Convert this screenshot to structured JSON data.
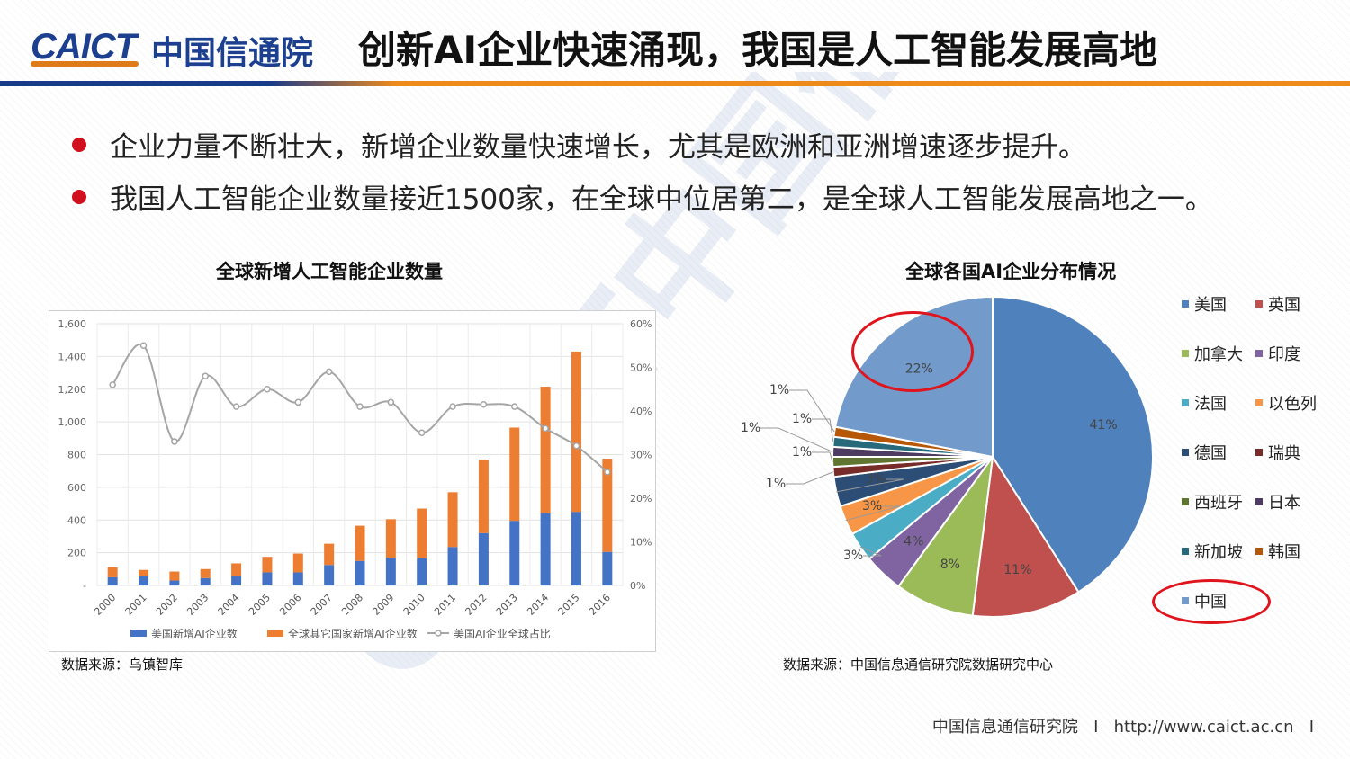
{
  "header": {
    "logo_text": "CAICT",
    "logo_cn": "中国信通院",
    "title": "创新AI企业快速涌现，我国是人工智能发展高地"
  },
  "bullets": [
    "企业力量不断壮大，新增企业数量快速增长，尤其是欧洲和亚洲增速逐步提升。",
    "我国人工智能企业数量接近1500家，在全球中位居第二，是全球人工智能发展高地之一。"
  ],
  "watermark": "CAICT中国信通院",
  "colors": {
    "accent_red": "#d0101e",
    "brand_blue": "#1c3f8f",
    "brand_orange": "#ee8a1c"
  },
  "chart_data": [
    {
      "type": "bar",
      "title": "全球新增人工智能企业数量",
      "categories": [
        "2000",
        "2001",
        "2002",
        "2003",
        "2004",
        "2005",
        "2006",
        "2007",
        "2008",
        "2009",
        "2010",
        "2011",
        "2012",
        "2013",
        "2014",
        "2015",
        "2016"
      ],
      "series": [
        {
          "name": "美国新增AI企业数",
          "kind": "stacked-bar",
          "color": "#4472c4",
          "values": [
            50,
            55,
            30,
            45,
            60,
            80,
            80,
            125,
            150,
            170,
            165,
            235,
            320,
            395,
            440,
            450,
            205
          ]
        },
        {
          "name": "全球其它国家新增AI企业数",
          "kind": "stacked-bar",
          "color": "#ed7d31",
          "values": [
            60,
            40,
            55,
            55,
            75,
            95,
            115,
            130,
            215,
            235,
            305,
            335,
            450,
            570,
            775,
            980,
            570
          ]
        },
        {
          "name": "美国AI企业全球占比",
          "kind": "line",
          "axis": "right",
          "color": "#a5a5a5",
          "values": [
            46,
            55,
            33,
            48,
            41,
            45,
            42,
            49,
            41,
            42,
            35,
            41,
            41.5,
            41,
            36,
            32,
            26
          ]
        }
      ],
      "ylim": [
        0,
        1600
      ],
      "y_ticks": [
        "-",
        "200",
        "400",
        "600",
        "800",
        "1,000",
        "1,200",
        "1,400",
        "1,600"
      ],
      "y2lim": [
        0,
        60
      ],
      "y2_ticks": [
        "0%",
        "10%",
        "20%",
        "30%",
        "40%",
        "50%",
        "60%"
      ],
      "grid": true,
      "legend": "bottom",
      "source": "数据来源：乌镇智库"
    },
    {
      "type": "pie",
      "title": "全球各国AI企业分布情况",
      "slices": [
        {
          "label": "美国",
          "value": 41,
          "text": "41%",
          "color": "#4f81bd"
        },
        {
          "label": "英国",
          "value": 11,
          "text": "11%",
          "color": "#c0504d"
        },
        {
          "label": "加拿大",
          "value": 8,
          "text": "8%",
          "color": "#9bbb59"
        },
        {
          "label": "印度",
          "value": 4,
          "text": "4%",
          "color": "#8064a2"
        },
        {
          "label": "法国",
          "value": 3,
          "text": "3%",
          "color": "#4bacc6"
        },
        {
          "label": "以色列",
          "value": 3,
          "text": "3%",
          "color": "#f79646"
        },
        {
          "label": "德国",
          "value": 3,
          "text": "3%",
          "color": "#2c4d75"
        },
        {
          "label": "瑞典",
          "value": 1,
          "text": "1%",
          "color": "#772c2a"
        },
        {
          "label": "西班牙",
          "value": 1,
          "text": "1%",
          "color": "#5f7530"
        },
        {
          "label": "日本",
          "value": 1,
          "text": "1%",
          "color": "#4d3b62"
        },
        {
          "label": "新加坡",
          "value": 1,
          "text": "1%",
          "color": "#276a7c"
        },
        {
          "label": "韩国",
          "value": 1,
          "text": "1%",
          "color": "#b65708"
        },
        {
          "label": "中国",
          "value": 22,
          "text": "22%",
          "color": "#729aca"
        }
      ],
      "legend": "right",
      "source": "数据来源：中国信息通信研究院数据研究中心"
    }
  ],
  "footer": {
    "org": "中国信息通信研究院",
    "sep": "I",
    "url": "http://www.caict.ac.cn"
  }
}
